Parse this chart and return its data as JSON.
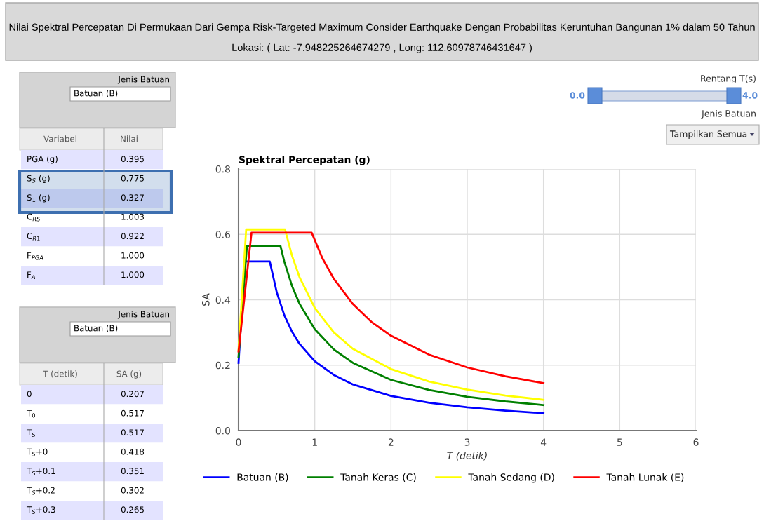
{
  "chart_data": [
    {
      "type": "other",
      "title": "Nilai Spektral Percepatan Di Permukaan Dari Gempa Risk-Targeted Maximum Consider Earthquake Dengan Probabilitas Keruntuhan Bangunan 1% dalam 50 Tahun",
      "subtitle": "Lokasi: ( Lat: -7.948225264674279 , Long: 112.60978746431647 )"
    },
    {
      "type": "other",
      "title": "Jenis Batuan",
      "subtitle": "Batuan (B)",
      "annotations": [
        "Variabel",
        "Nilai"
      ],
      "categories": [
        "PGA (g)",
        "S$_{S}$ (g)",
        "S$_{1}$ (g)",
        "C$_{RS}$",
        "C$_{R1}$",
        "F$_{PGA}$",
        "F$_{A}$"
      ],
      "value_labels": [
        "0.395",
        "0.775",
        "0.327",
        "1.003",
        "0.922",
        "1.000",
        "1.000"
      ]
    },
    {
      "type": "other",
      "title": "Jenis Batuan",
      "subtitle": "Batuan (B)",
      "annotations": [
        "T (detik)",
        "SA (g)"
      ],
      "categories": [
        "0",
        "T$_{0}$",
        "T$_{S}$",
        "T$_{S}$+0",
        "T$_{S}$+0.1",
        "T$_{S}$+0.2",
        "T$_{S}$+0.3"
      ],
      "value_labels": [
        "0.207",
        "0.517",
        "0.517",
        "0.418",
        "0.351",
        "0.302",
        "0.265"
      ]
    },
    {
      "type": "other",
      "annotations": [
        "Rentang T(s)",
        "0.0",
        "4.0",
        "Jenis Batuan",
        "Tampilkan Semua"
      ]
    },
    {
      "type": "line",
      "title": "Spektral Percepatan (g)",
      "xlabel": "T (detik)",
      "ylabel": "SA",
      "xlim": [
        0,
        6
      ],
      "xticks": [
        0,
        1,
        2,
        3,
        4,
        5,
        6
      ],
      "ylim": [
        0,
        0.8
      ],
      "yticks": [
        {
          "value": 0,
          "label": "0.0"
        },
        0.2,
        0.4,
        0.6,
        0.8
      ],
      "grid": true,
      "legend": "bottom",
      "marker": "none",
      "line_style": "solid",
      "series": [
        {
          "name": "Batuan (B)",
          "color": "#0000ff",
          "x": [
            0,
            0.083,
            0.41,
            0.5,
            0.6,
            0.7,
            0.8,
            1,
            1.25,
            1.5,
            2,
            2.5,
            3,
            3.5,
            4
          ],
          "values": [
            0.207,
            0.517,
            0.517,
            0.424,
            0.353,
            0.303,
            0.265,
            0.212,
            0.17,
            0.141,
            0.106,
            0.085,
            0.071,
            0.061,
            0.053
          ]
        },
        {
          "name": "Tanah Keras (C)",
          "color": "#008000",
          "x": [
            0,
            0.11,
            0.55,
            0.6,
            0.7,
            0.8,
            1,
            1.25,
            1.5,
            2,
            2.5,
            3,
            3.5,
            4
          ],
          "values": [
            0.226,
            0.565,
            0.565,
            0.517,
            0.443,
            0.388,
            0.31,
            0.248,
            0.207,
            0.155,
            0.124,
            0.103,
            0.089,
            0.078
          ]
        },
        {
          "name": "Tanah Sedang (D)",
          "color": "#ffff00",
          "x": [
            0,
            0.1,
            0.61,
            0.7,
            0.8,
            1,
            1.25,
            1.5,
            2,
            2.5,
            3,
            3.5,
            4
          ],
          "values": [
            0.246,
            0.615,
            0.615,
            0.536,
            0.469,
            0.375,
            0.3,
            0.25,
            0.188,
            0.15,
            0.125,
            0.107,
            0.094
          ]
        },
        {
          "name": "Tanah Lunak (E)",
          "color": "#ff0000",
          "x": [
            0,
            0.17,
            0.96,
            1.1,
            1.25,
            1.5,
            1.75,
            2,
            2.5,
            3,
            3.5,
            4
          ],
          "values": [
            0.242,
            0.605,
            0.605,
            0.527,
            0.464,
            0.387,
            0.331,
            0.29,
            0.232,
            0.193,
            0.166,
            0.145
          ]
        }
      ]
    }
  ]
}
